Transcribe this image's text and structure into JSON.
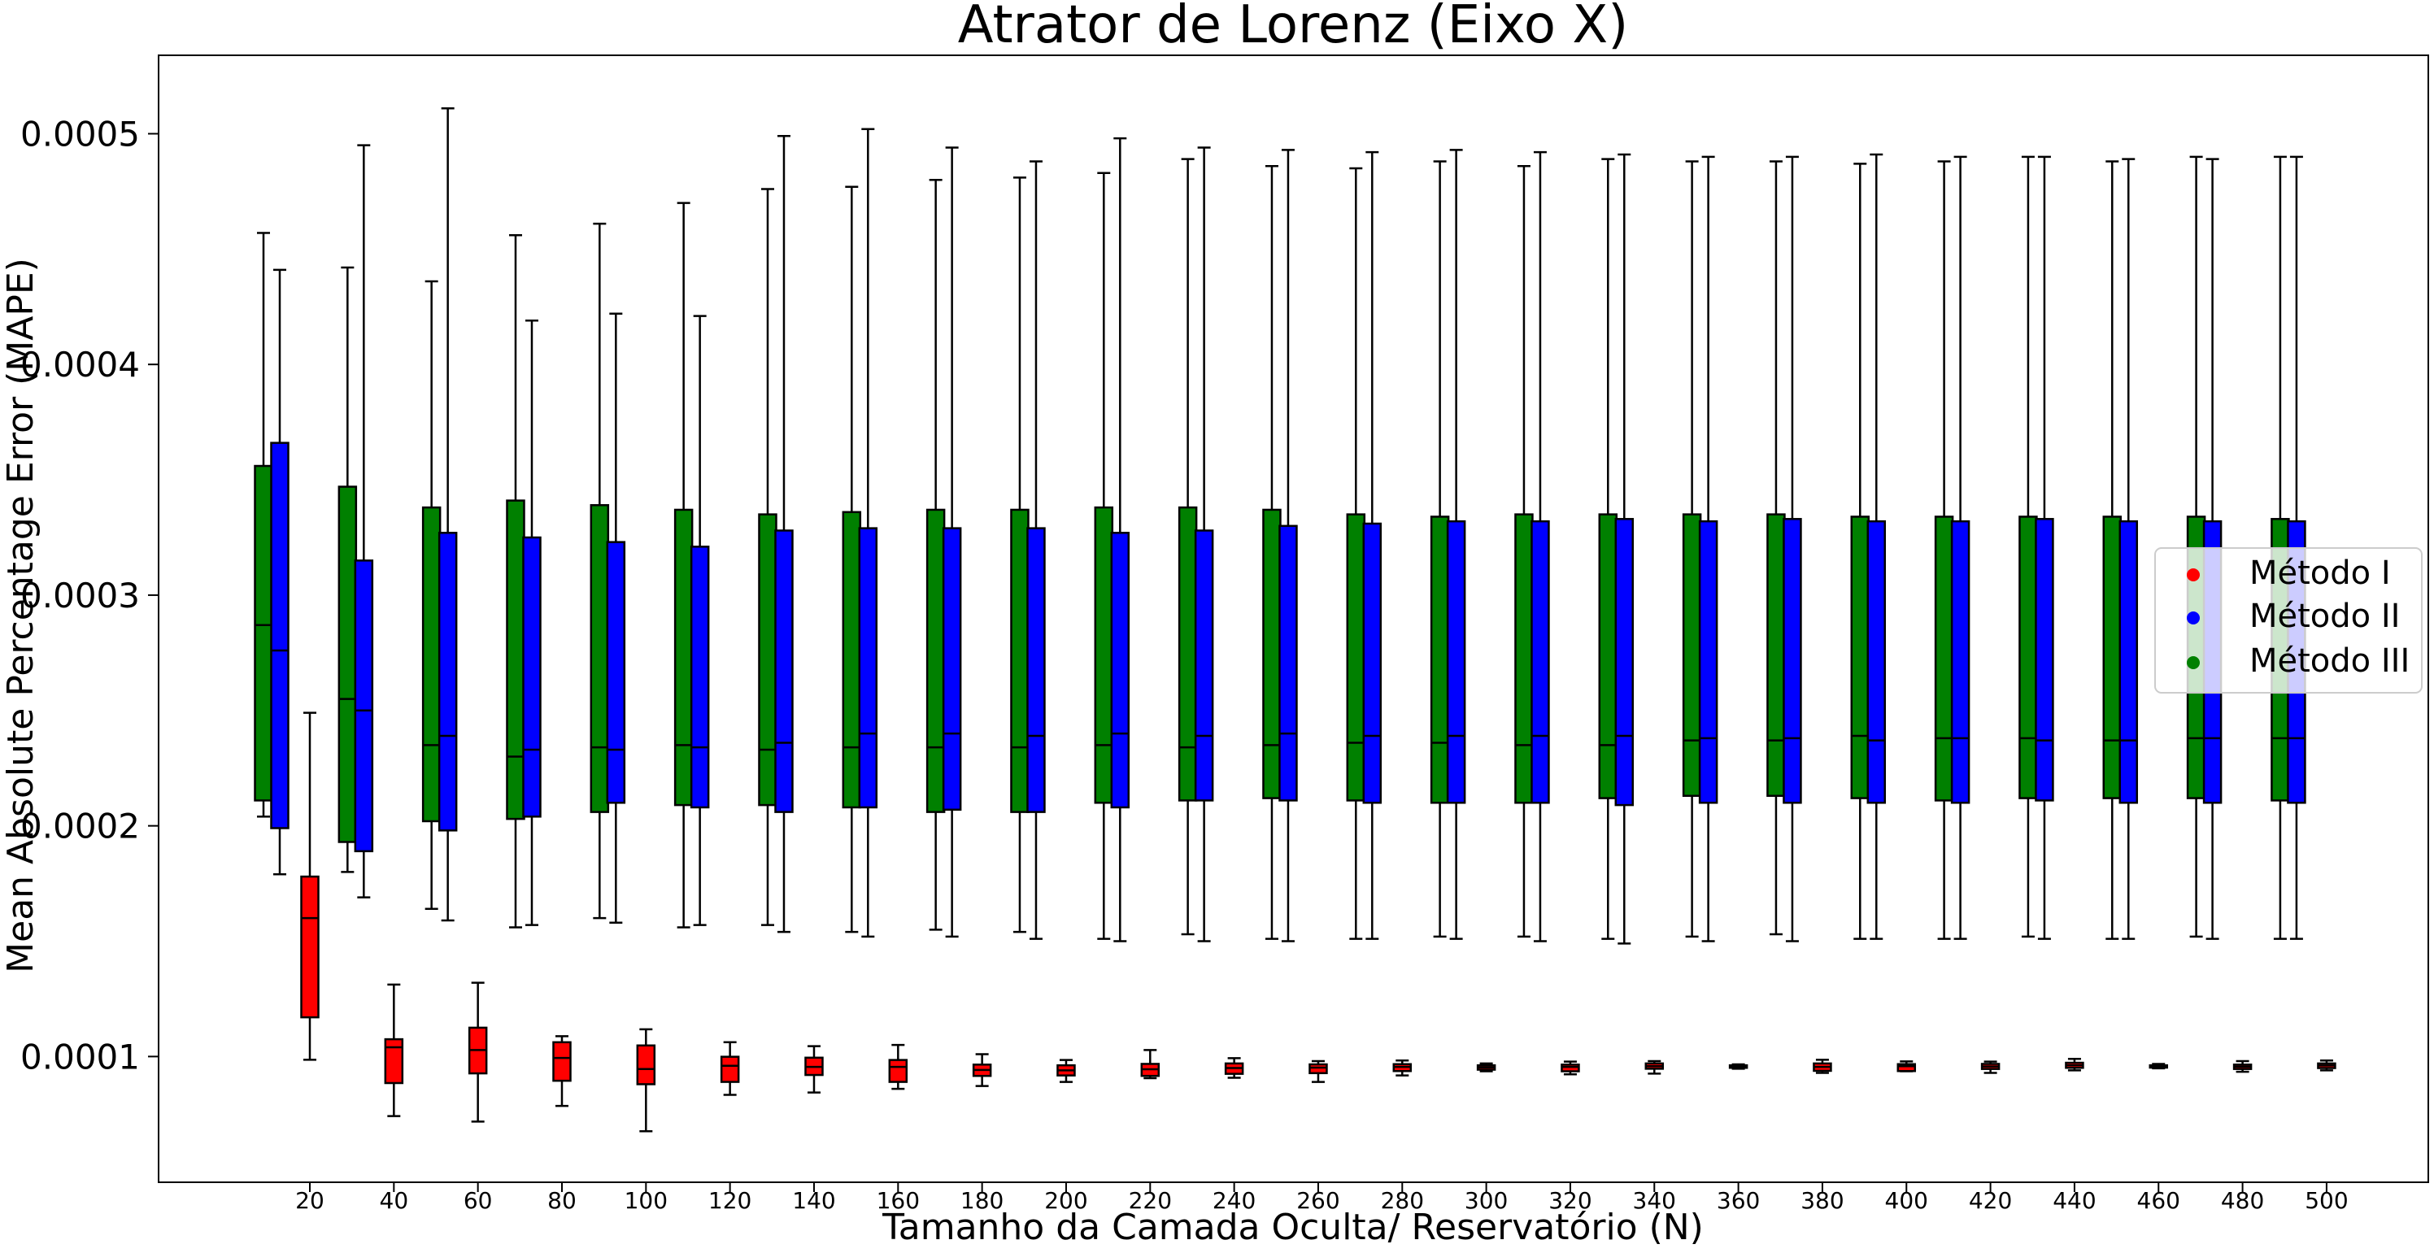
{
  "chart_data": {
    "type": "box",
    "title": "Atrator de Lorenz (Eixo X)",
    "xlabel": "Tamanho da Camada Oculta/ Reservatório (N)",
    "ylabel": "Mean Absolute Percentage Error (MAPE)",
    "categories": [
      "20",
      "40",
      "60",
      "80",
      "100",
      "120",
      "140",
      "160",
      "180",
      "200",
      "220",
      "240",
      "260",
      "280",
      "300",
      "320",
      "340",
      "360",
      "380",
      "400",
      "420",
      "440",
      "460",
      "480",
      "500"
    ],
    "yticks": [
      "0.0001",
      "0.0002",
      "0.0003",
      "0.0004",
      "0.0005"
    ],
    "ylim": [
      4.55e-05,
      0.000534
    ],
    "grid": false,
    "legend_position": "center-right",
    "series": [
      {
        "name": "Método I",
        "color": "#ff0000",
        "boxes": [
          {
            "min": 9.86e-05,
            "q1": 0.000117,
            "median": 0.00016,
            "q3": 0.000178,
            "max": 0.000249
          },
          {
            "min": 7.42e-05,
            "q1": 8.85e-05,
            "median": 0.000104,
            "q3": 0.0001075,
            "max": 0.0001312
          },
          {
            "min": 7.18e-05,
            "q1": 9.27e-05,
            "median": 0.0001028,
            "q3": 0.0001125,
            "max": 0.000132
          },
          {
            "min": 7.86e-05,
            "q1": 8.95e-05,
            "median": 9.94e-05,
            "q3": 0.0001062,
            "max": 0.0001088
          },
          {
            "min": 6.76e-05,
            "q1": 8.8e-05,
            "median": 9.46e-05,
            "q3": 0.0001048,
            "max": 0.0001118
          },
          {
            "min": 8.34e-05,
            "q1": 8.9e-05,
            "median": 9.6e-05,
            "q3": 9.99e-05,
            "max": 0.0001062
          },
          {
            "min": 8.44e-05,
            "q1": 9.2e-05,
            "median": 9.55e-05,
            "q3": 9.95e-05,
            "max": 0.0001045
          },
          {
            "min": 8.6e-05,
            "q1": 8.9e-05,
            "median": 9.55e-05,
            "q3": 9.85e-05,
            "max": 0.000105
          },
          {
            "min": 8.72e-05,
            "q1": 9.16e-05,
            "median": 9.42e-05,
            "q3": 9.65e-05,
            "max": 0.000101
          },
          {
            "min": 8.9e-05,
            "q1": 9.18e-05,
            "median": 9.4e-05,
            "q3": 9.62e-05,
            "max": 9.85e-05
          },
          {
            "min": 9.06e-05,
            "q1": 9.16e-05,
            "median": 9.45e-05,
            "q3": 9.68e-05,
            "max": 0.0001028
          },
          {
            "min": 9.08e-05,
            "q1": 9.25e-05,
            "median": 9.5e-05,
            "q3": 9.7e-05,
            "max": 9.93e-05
          },
          {
            "min": 8.9e-05,
            "q1": 9.28e-05,
            "median": 9.52e-05,
            "q3": 9.66e-05,
            "max": 9.8e-05
          },
          {
            "min": 9.18e-05,
            "q1": 9.37e-05,
            "median": 9.55e-05,
            "q3": 9.67e-05,
            "max": 9.83e-05
          },
          {
            "min": 9.36e-05,
            "q1": 9.43e-05,
            "median": 9.53e-05,
            "q3": 9.62e-05,
            "max": 9.7e-05
          },
          {
            "min": 9.23e-05,
            "q1": 9.36e-05,
            "median": 9.55e-05,
            "q3": 9.65e-05,
            "max": 9.78e-05
          },
          {
            "min": 9.26e-05,
            "q1": 9.47e-05,
            "median": 9.58e-05,
            "q3": 9.7e-05,
            "max": 9.8e-05
          },
          {
            "min": 9.47e-05,
            "q1": 9.51e-05,
            "median": 9.57e-05,
            "q3": 9.62e-05,
            "max": 9.66e-05
          },
          {
            "min": 9.29e-05,
            "q1": 9.38e-05,
            "median": 9.55e-05,
            "q3": 9.7e-05,
            "max": 9.86e-05
          },
          {
            "min": 9.36e-05,
            "q1": 9.37e-05,
            "median": 9.58e-05,
            "q3": 9.67e-05,
            "max": 9.79e-05
          },
          {
            "min": 9.29e-05,
            "q1": 9.46e-05,
            "median": 9.57e-05,
            "q3": 9.68e-05,
            "max": 9.78e-05
          },
          {
            "min": 9.4e-05,
            "q1": 9.51e-05,
            "median": 9.62e-05,
            "q3": 9.73e-05,
            "max": 9.9e-05
          },
          {
            "min": 9.49e-05,
            "q1": 9.52e-05,
            "median": 9.57e-05,
            "q3": 9.62e-05,
            "max": 9.68e-05
          },
          {
            "min": 9.34e-05,
            "q1": 9.46e-05,
            "median": 9.56e-05,
            "q3": 9.65e-05,
            "max": 9.8e-05
          },
          {
            "min": 9.4e-05,
            "q1": 9.5e-05,
            "median": 9.61e-05,
            "q3": 9.7e-05,
            "max": 9.83e-05
          }
        ]
      },
      {
        "name": "Método II",
        "color": "#0000ff",
        "boxes": [
          {
            "min": 0.000179,
            "q1": 0.000199,
            "median": 0.000276,
            "q3": 0.000366,
            "max": 0.000441
          },
          {
            "min": 0.000169,
            "q1": 0.000189,
            "median": 0.00025,
            "q3": 0.000315,
            "max": 0.000495
          },
          {
            "min": 0.000159,
            "q1": 0.000198,
            "median": 0.000239,
            "q3": 0.000327,
            "max": 0.000511
          },
          {
            "min": 0.000157,
            "q1": 0.000204,
            "median": 0.000233,
            "q3": 0.000325,
            "max": 0.000419
          },
          {
            "min": 0.000158,
            "q1": 0.00021,
            "median": 0.000233,
            "q3": 0.000323,
            "max": 0.000422
          },
          {
            "min": 0.000157,
            "q1": 0.000208,
            "median": 0.000234,
            "q3": 0.000321,
            "max": 0.000421
          },
          {
            "min": 0.000154,
            "q1": 0.000206,
            "median": 0.000236,
            "q3": 0.000328,
            "max": 0.000499
          },
          {
            "min": 0.000152,
            "q1": 0.000208,
            "median": 0.00024,
            "q3": 0.000329,
            "max": 0.000502
          },
          {
            "min": 0.000152,
            "q1": 0.000207,
            "median": 0.00024,
            "q3": 0.000329,
            "max": 0.000494
          },
          {
            "min": 0.000151,
            "q1": 0.000206,
            "median": 0.000239,
            "q3": 0.000329,
            "max": 0.000488
          },
          {
            "min": 0.00015,
            "q1": 0.000208,
            "median": 0.00024,
            "q3": 0.000327,
            "max": 0.000498
          },
          {
            "min": 0.00015,
            "q1": 0.000211,
            "median": 0.000239,
            "q3": 0.000328,
            "max": 0.000494
          },
          {
            "min": 0.00015,
            "q1": 0.000211,
            "median": 0.00024,
            "q3": 0.00033,
            "max": 0.000493
          },
          {
            "min": 0.000151,
            "q1": 0.00021,
            "median": 0.000239,
            "q3": 0.000331,
            "max": 0.000492
          },
          {
            "min": 0.000151,
            "q1": 0.00021,
            "median": 0.000239,
            "q3": 0.000332,
            "max": 0.000493
          },
          {
            "min": 0.00015,
            "q1": 0.00021,
            "median": 0.000239,
            "q3": 0.000332,
            "max": 0.000492
          },
          {
            "min": 0.000149,
            "q1": 0.000209,
            "median": 0.000239,
            "q3": 0.000333,
            "max": 0.000491
          },
          {
            "min": 0.00015,
            "q1": 0.00021,
            "median": 0.000238,
            "q3": 0.000332,
            "max": 0.00049
          },
          {
            "min": 0.00015,
            "q1": 0.00021,
            "median": 0.000238,
            "q3": 0.000333,
            "max": 0.00049
          },
          {
            "min": 0.000151,
            "q1": 0.00021,
            "median": 0.000237,
            "q3": 0.000332,
            "max": 0.000491
          },
          {
            "min": 0.000151,
            "q1": 0.00021,
            "median": 0.000238,
            "q3": 0.000332,
            "max": 0.00049
          },
          {
            "min": 0.000151,
            "q1": 0.000211,
            "median": 0.000237,
            "q3": 0.000333,
            "max": 0.00049
          },
          {
            "min": 0.000151,
            "q1": 0.00021,
            "median": 0.000237,
            "q3": 0.000332,
            "max": 0.000489
          },
          {
            "min": 0.000151,
            "q1": 0.00021,
            "median": 0.000238,
            "q3": 0.000332,
            "max": 0.000489
          },
          {
            "min": 0.000151,
            "q1": 0.00021,
            "median": 0.000238,
            "q3": 0.000332,
            "max": 0.00049
          }
        ]
      },
      {
        "name": "Método III",
        "color": "#008000",
        "boxes": [
          {
            "min": 0.000204,
            "q1": 0.000211,
            "median": 0.000287,
            "q3": 0.000356,
            "max": 0.000457
          },
          {
            "min": 0.00018,
            "q1": 0.000193,
            "median": 0.000255,
            "q3": 0.000347,
            "max": 0.000442
          },
          {
            "min": 0.000164,
            "q1": 0.000202,
            "median": 0.000235,
            "q3": 0.000338,
            "max": 0.000436
          },
          {
            "min": 0.000156,
            "q1": 0.000203,
            "median": 0.00023,
            "q3": 0.000341,
            "max": 0.000456
          },
          {
            "min": 0.00016,
            "q1": 0.000206,
            "median": 0.000234,
            "q3": 0.000339,
            "max": 0.000461
          },
          {
            "min": 0.000156,
            "q1": 0.000209,
            "median": 0.000235,
            "q3": 0.000337,
            "max": 0.00047
          },
          {
            "min": 0.000157,
            "q1": 0.000209,
            "median": 0.000233,
            "q3": 0.000335,
            "max": 0.000476
          },
          {
            "min": 0.000154,
            "q1": 0.000208,
            "median": 0.000234,
            "q3": 0.000336,
            "max": 0.000477
          },
          {
            "min": 0.000155,
            "q1": 0.000206,
            "median": 0.000234,
            "q3": 0.000337,
            "max": 0.00048
          },
          {
            "min": 0.000154,
            "q1": 0.000206,
            "median": 0.000234,
            "q3": 0.000337,
            "max": 0.000481
          },
          {
            "min": 0.000151,
            "q1": 0.00021,
            "median": 0.000235,
            "q3": 0.000338,
            "max": 0.000483
          },
          {
            "min": 0.000153,
            "q1": 0.000211,
            "median": 0.000234,
            "q3": 0.000338,
            "max": 0.000489
          },
          {
            "min": 0.000151,
            "q1": 0.000212,
            "median": 0.000235,
            "q3": 0.000337,
            "max": 0.000486
          },
          {
            "min": 0.000151,
            "q1": 0.000211,
            "median": 0.000236,
            "q3": 0.000335,
            "max": 0.000485
          },
          {
            "min": 0.000152,
            "q1": 0.00021,
            "median": 0.000236,
            "q3": 0.000334,
            "max": 0.000488
          },
          {
            "min": 0.000152,
            "q1": 0.00021,
            "median": 0.000235,
            "q3": 0.000335,
            "max": 0.000486
          },
          {
            "min": 0.000151,
            "q1": 0.000212,
            "median": 0.000235,
            "q3": 0.000335,
            "max": 0.000489
          },
          {
            "min": 0.000152,
            "q1": 0.000213,
            "median": 0.000237,
            "q3": 0.000335,
            "max": 0.000488
          },
          {
            "min": 0.000153,
            "q1": 0.000213,
            "median": 0.000237,
            "q3": 0.000335,
            "max": 0.000488
          },
          {
            "min": 0.000151,
            "q1": 0.000212,
            "median": 0.000239,
            "q3": 0.000334,
            "max": 0.000487
          },
          {
            "min": 0.000151,
            "q1": 0.000211,
            "median": 0.000238,
            "q3": 0.000334,
            "max": 0.000488
          },
          {
            "min": 0.000152,
            "q1": 0.000212,
            "median": 0.000238,
            "q3": 0.000334,
            "max": 0.00049
          },
          {
            "min": 0.000151,
            "q1": 0.000212,
            "median": 0.000237,
            "q3": 0.000334,
            "max": 0.000488
          },
          {
            "min": 0.000152,
            "q1": 0.000212,
            "median": 0.000238,
            "q3": 0.000334,
            "max": 0.00049
          },
          {
            "min": 0.000151,
            "q1": 0.000211,
            "median": 0.000238,
            "q3": 0.000333,
            "max": 0.00049
          }
        ]
      }
    ]
  }
}
